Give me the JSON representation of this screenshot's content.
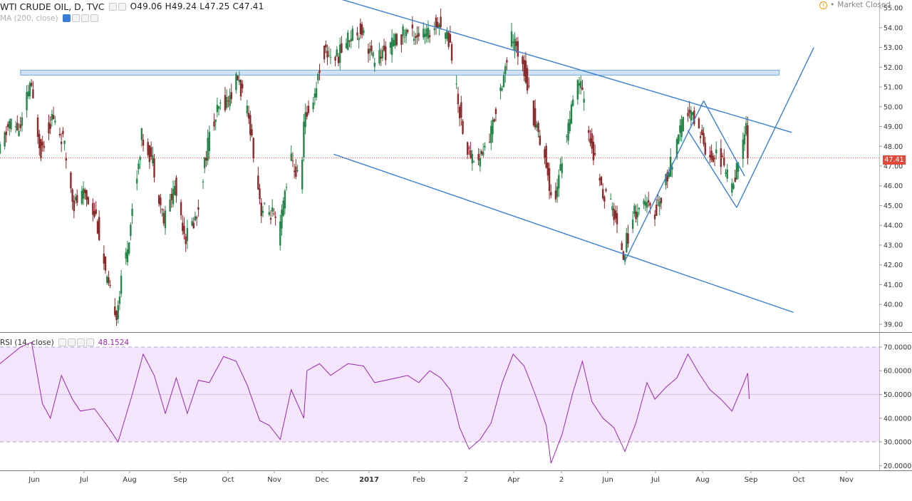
{
  "header": {
    "symbol": "WTI CRUDE OIL, D, TVC",
    "open": "O49.06",
    "high": "H49.24",
    "low": "L47.25",
    "close": "C47.41",
    "ma_label": "MA (200, close)",
    "market_status": "Market Closed",
    "rsi_label": "RSI (14, close)",
    "rsi_value": "48.1524"
  },
  "colors": {
    "up": "#26864a",
    "down": "#8b2a2a",
    "trendline": "#3b7fd0",
    "rsi_line": "#9c27b0",
    "rsi_band": "#f3e5fb",
    "price_badge": "#e04a3a"
  },
  "chart_data": [
    {
      "type": "candlestick",
      "name": "WTI CRUDE OIL, D, TVC",
      "x_axis": {
        "tick_labels": [
          "Jun",
          "Jul",
          "Aug",
          "Sep",
          "Oct",
          "Nov",
          "Dec",
          "2017",
          "Feb",
          "2",
          "Apr",
          "2",
          "Jun",
          "Jul",
          "Aug",
          "Sep",
          "Oct",
          "Nov"
        ],
        "range": [
          "2016-05-20",
          "2017-11-30"
        ]
      },
      "y_axis": {
        "ticks": [
          "55.00",
          "54.00",
          "53.00",
          "52.00",
          "51.00",
          "50.00",
          "49.00",
          "48.00",
          "47.00",
          "46.00",
          "45.00",
          "44.00",
          "43.00",
          "42.00",
          "41.00",
          "40.00",
          "39.00"
        ],
        "range": [
          38.6,
          55.4
        ],
        "last_price": "47.41"
      },
      "path_points": [
        {
          "date": "2016-05-20",
          "price": 47.5
        },
        {
          "date": "2016-05-27",
          "price": 49.2
        },
        {
          "date": "2016-06-03",
          "price": 48.8
        },
        {
          "date": "2016-06-09",
          "price": 51.2
        },
        {
          "date": "2016-06-16",
          "price": 47.8
        },
        {
          "date": "2016-06-23",
          "price": 49.5
        },
        {
          "date": "2016-06-30",
          "price": 48.3
        },
        {
          "date": "2016-07-07",
          "price": 45.1
        },
        {
          "date": "2016-07-14",
          "price": 45.6
        },
        {
          "date": "2016-07-21",
          "price": 44.5
        },
        {
          "date": "2016-07-28",
          "price": 41.0
        },
        {
          "date": "2016-08-03",
          "price": 39.6
        },
        {
          "date": "2016-08-11",
          "price": 43.5
        },
        {
          "date": "2016-08-19",
          "price": 48.5
        },
        {
          "date": "2016-08-26",
          "price": 47.3
        },
        {
          "date": "2016-09-02",
          "price": 44.2
        },
        {
          "date": "2016-09-09",
          "price": 46.0
        },
        {
          "date": "2016-09-16",
          "price": 43.4
        },
        {
          "date": "2016-09-23",
          "price": 44.5
        },
        {
          "date": "2016-09-30",
          "price": 48.2
        },
        {
          "date": "2016-10-07",
          "price": 49.9
        },
        {
          "date": "2016-10-14",
          "price": 50.5
        },
        {
          "date": "2016-10-19",
          "price": 51.5
        },
        {
          "date": "2016-10-27",
          "price": 49.0
        },
        {
          "date": "2016-11-03",
          "price": 44.8
        },
        {
          "date": "2016-11-10",
          "price": 44.6
        },
        {
          "date": "2016-11-14",
          "price": 43.3
        },
        {
          "date": "2016-11-21",
          "price": 47.5
        },
        {
          "date": "2016-11-28",
          "price": 46.0
        },
        {
          "date": "2016-11-30",
          "price": 49.2
        },
        {
          "date": "2016-12-07",
          "price": 50.7
        },
        {
          "date": "2016-12-12",
          "price": 52.8
        },
        {
          "date": "2016-12-21",
          "price": 52.5
        },
        {
          "date": "2016-12-30",
          "price": 53.7
        },
        {
          "date": "2017-01-06",
          "price": 53.9
        },
        {
          "date": "2017-01-13",
          "price": 52.4
        },
        {
          "date": "2017-01-20",
          "price": 52.7
        },
        {
          "date": "2017-01-27",
          "price": 53.3
        },
        {
          "date": "2017-02-03",
          "price": 53.8
        },
        {
          "date": "2017-02-10",
          "price": 53.7
        },
        {
          "date": "2017-02-17",
          "price": 53.6
        },
        {
          "date": "2017-02-23",
          "price": 54.4
        },
        {
          "date": "2017-03-03",
          "price": 53.3
        },
        {
          "date": "2017-03-08",
          "price": 50.2
        },
        {
          "date": "2017-03-14",
          "price": 47.7
        },
        {
          "date": "2017-03-21",
          "price": 47.3
        },
        {
          "date": "2017-03-28",
          "price": 48.4
        },
        {
          "date": "2017-04-04",
          "price": 51.0
        },
        {
          "date": "2017-04-11",
          "price": 53.4
        },
        {
          "date": "2017-04-18",
          "price": 52.4
        },
        {
          "date": "2017-04-25",
          "price": 49.5
        },
        {
          "date": "2017-05-02",
          "price": 47.6
        },
        {
          "date": "2017-05-05",
          "price": 45.9
        },
        {
          "date": "2017-05-09",
          "price": 45.6
        },
        {
          "date": "2017-05-16",
          "price": 48.7
        },
        {
          "date": "2017-05-24",
          "price": 51.4
        },
        {
          "date": "2017-05-31",
          "price": 48.3
        },
        {
          "date": "2017-06-07",
          "price": 45.8
        },
        {
          "date": "2017-06-14",
          "price": 44.9
        },
        {
          "date": "2017-06-21",
          "price": 42.6
        },
        {
          "date": "2017-06-28",
          "price": 44.7
        },
        {
          "date": "2017-07-05",
          "price": 45.1
        },
        {
          "date": "2017-07-10",
          "price": 44.4
        },
        {
          "date": "2017-07-17",
          "price": 46.0
        },
        {
          "date": "2017-07-24",
          "price": 47.8
        },
        {
          "date": "2017-07-31",
          "price": 49.8
        },
        {
          "date": "2017-08-07",
          "price": 49.2
        },
        {
          "date": "2017-08-14",
          "price": 47.5
        },
        {
          "date": "2017-08-21",
          "price": 47.6
        },
        {
          "date": "2017-08-28",
          "price": 46.0
        },
        {
          "date": "2017-09-04",
          "price": 47.5
        },
        {
          "date": "2017-09-07",
          "price": 49.1
        },
        {
          "date": "2017-09-08",
          "price": 47.41
        }
      ],
      "trendlines": [
        {
          "name": "upper channel",
          "from": {
            "date": "2016-12-20",
            "price": 55.5
          },
          "to": {
            "date": "2017-10-05",
            "price": 48.7
          }
        },
        {
          "name": "lower channel",
          "from": {
            "date": "2016-12-18",
            "price": 47.6
          },
          "to": {
            "date": "2017-10-06",
            "price": 39.6
          }
        },
        {
          "name": "resistance zone",
          "zone": [
            51.6,
            51.85
          ],
          "from": "2016-06-02",
          "to": "2017-09-27"
        }
      ]
    },
    {
      "type": "line",
      "name": "RSI (14, close)",
      "y_axis": {
        "ticks": [
          "70.0000",
          "60.0000",
          "50.0000",
          "40.0000",
          "30.0000",
          "20.0000"
        ],
        "range": [
          18,
          76
        ],
        "band": [
          30,
          70
        ]
      },
      "last_value": "48.1524",
      "series": [
        {
          "date": "2016-05-20",
          "value": 63
        },
        {
          "date": "2016-06-02",
          "value": 70
        },
        {
          "date": "2016-06-09",
          "value": 72
        },
        {
          "date": "2016-06-16",
          "value": 46
        },
        {
          "date": "2016-06-21",
          "value": 40
        },
        {
          "date": "2016-06-28",
          "value": 58
        },
        {
          "date": "2016-07-05",
          "value": 48
        },
        {
          "date": "2016-07-10",
          "value": 43
        },
        {
          "date": "2016-07-19",
          "value": 44
        },
        {
          "date": "2016-07-28",
          "value": 36
        },
        {
          "date": "2016-08-03",
          "value": 30
        },
        {
          "date": "2016-08-12",
          "value": 50
        },
        {
          "date": "2016-08-19",
          "value": 67
        },
        {
          "date": "2016-08-26",
          "value": 58
        },
        {
          "date": "2016-09-02",
          "value": 42
        },
        {
          "date": "2016-09-09",
          "value": 57
        },
        {
          "date": "2016-09-16",
          "value": 42
        },
        {
          "date": "2016-09-23",
          "value": 56
        },
        {
          "date": "2016-09-30",
          "value": 55
        },
        {
          "date": "2016-10-09",
          "value": 66
        },
        {
          "date": "2016-10-17",
          "value": 64
        },
        {
          "date": "2016-10-24",
          "value": 54
        },
        {
          "date": "2016-11-01",
          "value": 39
        },
        {
          "date": "2016-11-07",
          "value": 37
        },
        {
          "date": "2016-11-14",
          "value": 31
        },
        {
          "date": "2016-11-21",
          "value": 52
        },
        {
          "date": "2016-11-29",
          "value": 40
        },
        {
          "date": "2016-12-01",
          "value": 60
        },
        {
          "date": "2016-12-09",
          "value": 63
        },
        {
          "date": "2016-12-16",
          "value": 58
        },
        {
          "date": "2016-12-27",
          "value": 63
        },
        {
          "date": "2017-01-06",
          "value": 62
        },
        {
          "date": "2017-01-13",
          "value": 55
        },
        {
          "date": "2017-01-20",
          "value": 56
        },
        {
          "date": "2017-01-27",
          "value": 57
        },
        {
          "date": "2017-02-03",
          "value": 58
        },
        {
          "date": "2017-02-10",
          "value": 55
        },
        {
          "date": "2017-02-17",
          "value": 60
        },
        {
          "date": "2017-02-24",
          "value": 57
        },
        {
          "date": "2017-03-02",
          "value": 52
        },
        {
          "date": "2017-03-08",
          "value": 36
        },
        {
          "date": "2017-03-14",
          "value": 27
        },
        {
          "date": "2017-03-21",
          "value": 31
        },
        {
          "date": "2017-03-28",
          "value": 38
        },
        {
          "date": "2017-04-04",
          "value": 55
        },
        {
          "date": "2017-04-11",
          "value": 67
        },
        {
          "date": "2017-04-18",
          "value": 62
        },
        {
          "date": "2017-04-25",
          "value": 50
        },
        {
          "date": "2017-05-02",
          "value": 37
        },
        {
          "date": "2017-05-05",
          "value": 21
        },
        {
          "date": "2017-05-12",
          "value": 33
        },
        {
          "date": "2017-05-19",
          "value": 51
        },
        {
          "date": "2017-05-25",
          "value": 64
        },
        {
          "date": "2017-05-31",
          "value": 47
        },
        {
          "date": "2017-06-07",
          "value": 40
        },
        {
          "date": "2017-06-14",
          "value": 36
        },
        {
          "date": "2017-06-21",
          "value": 26
        },
        {
          "date": "2017-06-28",
          "value": 38
        },
        {
          "date": "2017-07-05",
          "value": 55
        },
        {
          "date": "2017-07-10",
          "value": 48
        },
        {
          "date": "2017-07-17",
          "value": 53
        },
        {
          "date": "2017-07-24",
          "value": 57
        },
        {
          "date": "2017-07-31",
          "value": 67
        },
        {
          "date": "2017-08-07",
          "value": 59
        },
        {
          "date": "2017-08-14",
          "value": 52
        },
        {
          "date": "2017-08-21",
          "value": 48
        },
        {
          "date": "2017-08-28",
          "value": 43
        },
        {
          "date": "2017-09-04",
          "value": 54
        },
        {
          "date": "2017-09-07",
          "value": 59
        },
        {
          "date": "2017-09-08",
          "value": 48.15
        }
      ]
    }
  ]
}
